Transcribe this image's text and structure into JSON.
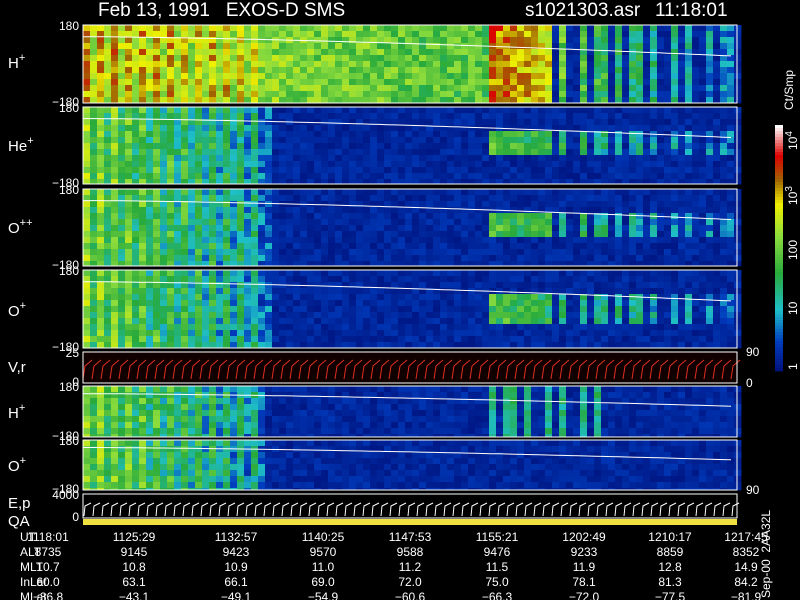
{
  "header": {
    "title": "Feb 13, 1991   EXOS-D SMS",
    "file": "s1021303.asr",
    "time": "11:18:01"
  },
  "panels": [
    {
      "label": "H",
      "charge": "+",
      "top": "180",
      "bottom": "−180"
    },
    {
      "label": "He",
      "charge": "+",
      "top": "180",
      "bottom": "−180"
    },
    {
      "label": "O",
      "charge": "++",
      "top": "180",
      "bottom": "−180"
    },
    {
      "label": "O",
      "charge": "+",
      "top": "180",
      "bottom": "−180"
    },
    {
      "label": "V,r",
      "top": "25",
      "bottom": "0"
    },
    {
      "label": "H",
      "charge": "+",
      "top": "180",
      "bottom": "−180"
    },
    {
      "label": "O",
      "charge": "+",
      "top": "180",
      "bottom": "−180"
    },
    {
      "label": "E,p",
      "top": "4000",
      "bottom": "0"
    },
    {
      "label": "QA"
    }
  ],
  "right_labels": [
    "90",
    "0",
    "90"
  ],
  "colorbar": {
    "unit": "Ct/Smp",
    "ticks": [
      {
        "text": "10",
        "sup": "4"
      },
      {
        "text": "10",
        "sup": "3"
      },
      {
        "text": "100"
      },
      {
        "text": "10"
      },
      {
        "text": "1"
      }
    ]
  },
  "side_note": "Sep-00  2AA32L",
  "table": {
    "rows": [
      [
        "UT",
        "1118:01",
        "1125:29",
        "1132:57",
        "1140:25",
        "1147:53",
        "1155:21",
        "1202:49",
        "1210:17",
        "1217:45"
      ],
      [
        "ALT",
        "8735",
        "9145",
        "9423",
        "9570",
        "9588",
        "9476",
        "9233",
        "8859",
        "8352"
      ],
      [
        "MLT",
        "10.7",
        "10.8",
        "10.9",
        "11.0",
        "11.2",
        "11.5",
        "11.9",
        "12.8",
        "14.9"
      ],
      [
        "InLat",
        "60.0",
        "63.1",
        "66.1",
        "69.0",
        "72.0",
        "75.0",
        "78.1",
        "81.3",
        "84.2"
      ],
      [
        "MLat",
        "−36.8",
        "−43.1",
        "−49.1",
        "−54.9",
        "−60.6",
        "−66.3",
        "−72.0",
        "−77.5",
        "−81.9"
      ]
    ]
  }
}
